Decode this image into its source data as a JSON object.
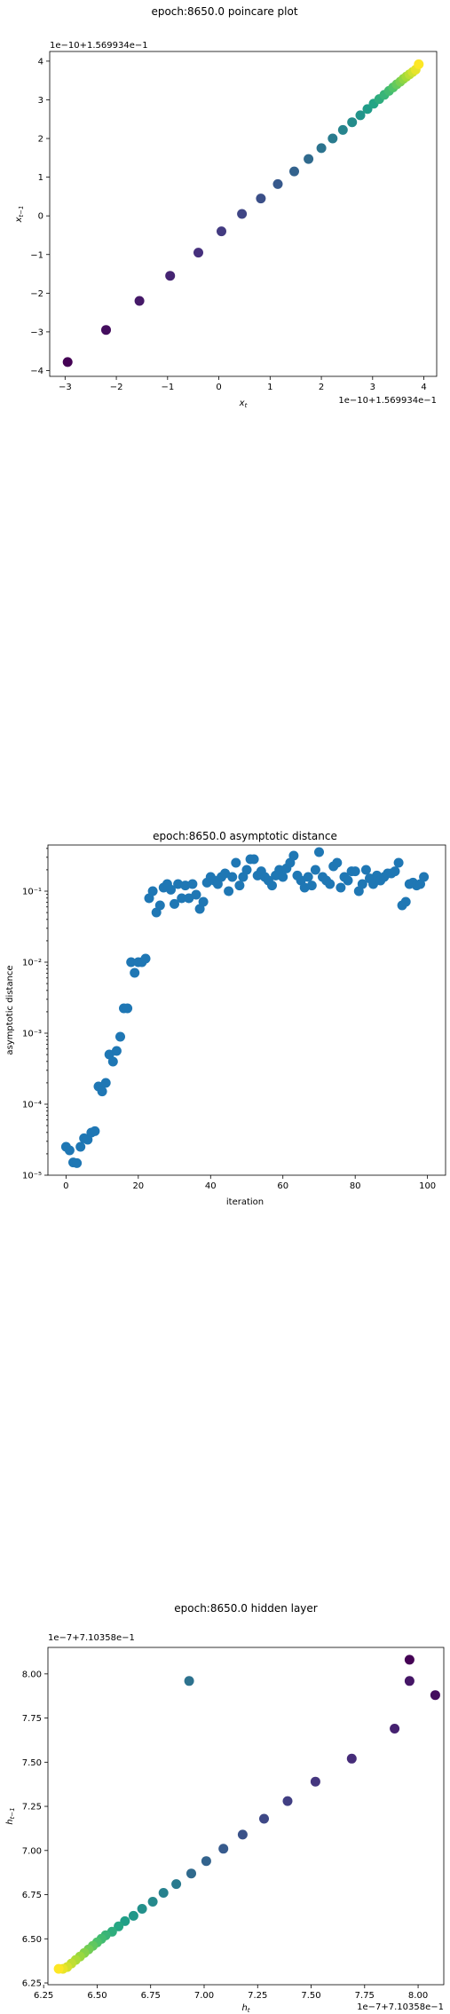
{
  "chart_data": [
    {
      "type": "scatter",
      "title": "epoch:8650.0 poincare plot",
      "xlabel": "x_t",
      "ylabel": "x_{t-1}",
      "x_offset_label": "1e−10+1.569934e−1",
      "y_offset_label": "1e−10+1.569934e−1",
      "xlim": [
        -3.3,
        4.25
      ],
      "ylim": [
        -4.15,
        4.25
      ],
      "xticks": [
        -3,
        -2,
        -1,
        0,
        1,
        2,
        3,
        4
      ],
      "xtick_labels": [
        "−3",
        "−2",
        "−1",
        "0",
        "1",
        "2",
        "3",
        "4"
      ],
      "yticks": [
        -4,
        -3,
        -2,
        -1,
        0,
        1,
        2,
        3,
        4
      ],
      "ytick_labels": [
        "−4",
        "−3",
        "−2",
        "−1",
        "0",
        "1",
        "2",
        "3",
        "4"
      ],
      "colormap": [
        "#440154",
        "#46327e",
        "#365c8d",
        "#277f8e",
        "#1fa187",
        "#4ac16d",
        "#a0da39",
        "#fde725"
      ],
      "points": {
        "x": [
          -2.95,
          -2.2,
          -1.55,
          -0.95,
          -0.4,
          0.05,
          0.45,
          0.82,
          1.15,
          1.47,
          1.75,
          2.0,
          2.22,
          2.42,
          2.6,
          2.76,
          2.9,
          3.02,
          3.13,
          3.23,
          3.32,
          3.4,
          3.47,
          3.54,
          3.6,
          3.66,
          3.72,
          3.78,
          3.84,
          3.9
        ],
        "y": [
          -3.78,
          -2.95,
          -2.2,
          -1.55,
          -0.95,
          -0.4,
          0.05,
          0.45,
          0.82,
          1.15,
          1.47,
          1.75,
          2.0,
          2.22,
          2.42,
          2.6,
          2.76,
          2.9,
          3.02,
          3.13,
          3.23,
          3.32,
          3.4,
          3.47,
          3.54,
          3.6,
          3.66,
          3.72,
          3.78,
          3.92
        ]
      }
    },
    {
      "type": "scatter",
      "title": "epoch:8650.0 asymptotic distance",
      "xlabel": "iteration",
      "ylabel": "asymptotic distance",
      "yscale": "log",
      "xlim": [
        -5,
        105
      ],
      "ylim_log10": [
        -5,
        -0.35
      ],
      "xticks": [
        0,
        20,
        40,
        60,
        80,
        100
      ],
      "xtick_labels": [
        "0",
        "20",
        "40",
        "60",
        "80",
        "100"
      ],
      "yticks_log10": [
        -5,
        -4,
        -3,
        -2,
        -1
      ],
      "ytick_labels": [
        "10⁻⁵",
        "10⁻⁴",
        "10⁻³",
        "10⁻²",
        "10⁻¹"
      ],
      "color": "#1f77b4",
      "points": {
        "x": [
          0,
          1,
          2,
          3,
          4,
          5,
          6,
          7,
          8,
          9,
          10,
          11,
          12,
          13,
          14,
          15,
          16,
          17,
          18,
          19,
          20,
          21,
          22,
          23,
          24,
          25,
          26,
          27,
          28,
          29,
          30,
          31,
          32,
          33,
          34,
          35,
          36,
          37,
          38,
          39,
          40,
          41,
          42,
          43,
          44,
          45,
          46,
          47,
          48,
          49,
          50,
          51,
          52,
          53,
          54,
          55,
          56,
          57,
          58,
          59,
          60,
          61,
          62,
          63,
          64,
          65,
          66,
          67,
          68,
          69,
          70,
          71,
          72,
          73,
          74,
          75,
          76,
          77,
          78,
          79,
          80,
          81,
          82,
          83,
          84,
          85,
          86,
          87,
          88,
          89,
          90,
          91,
          92,
          93,
          94,
          95,
          96,
          97,
          98,
          99
        ],
        "y_log10": [
          -4.6,
          -4.65,
          -4.82,
          -4.83,
          -4.6,
          -4.48,
          -4.5,
          -4.4,
          -4.38,
          -3.75,
          -3.82,
          -3.7,
          -3.3,
          -3.4,
          -3.25,
          -3.05,
          -2.65,
          -2.65,
          -2.0,
          -2.15,
          -2.0,
          -2.0,
          -1.95,
          -1.1,
          -1.0,
          -1.3,
          -1.2,
          -0.95,
          -0.9,
          -0.98,
          -1.18,
          -0.9,
          -1.1,
          -0.92,
          -1.1,
          -0.9,
          -1.05,
          -1.25,
          -1.15,
          -0.88,
          -0.8,
          -0.85,
          -0.9,
          -0.8,
          -0.75,
          -1.0,
          -0.8,
          -0.6,
          -0.92,
          -0.8,
          -0.7,
          -0.55,
          -0.55,
          -0.78,
          -0.72,
          -0.8,
          -0.85,
          -0.92,
          -0.78,
          -0.7,
          -0.8,
          -0.68,
          -0.6,
          -0.5,
          -0.78,
          -0.85,
          -0.95,
          -0.8,
          -0.92,
          -0.7,
          -0.45,
          -0.8,
          -0.85,
          -0.9,
          -0.65,
          -0.6,
          -0.95,
          -0.8,
          -0.85,
          -0.72,
          -0.72,
          -1.0,
          -0.9,
          -0.7,
          -0.82,
          -0.9,
          -0.78,
          -0.85,
          -0.8,
          -0.75,
          -0.75,
          -0.72,
          -0.6,
          -1.2,
          -1.15,
          -0.9,
          -0.88,
          -0.92,
          -0.9,
          -0.8
        ]
      }
    },
    {
      "type": "scatter",
      "title": "epoch:8650.0 hidden layer",
      "xlabel": "h_t",
      "ylabel": "h_{t-1}",
      "x_offset_label": "1e−7+7.10358e−1",
      "y_offset_label": "1e−7+7.10358e−1",
      "xlim": [
        6.27,
        8.12
      ],
      "ylim": [
        6.24,
        8.15
      ],
      "xticks": [
        6.25,
        6.5,
        6.75,
        7.0,
        7.25,
        7.5,
        7.75,
        8.0
      ],
      "xtick_labels": [
        "6.25",
        "6.50",
        "6.75",
        "7.00",
        "7.25",
        "7.50",
        "7.75",
        "8.00"
      ],
      "yticks": [
        6.25,
        6.5,
        6.75,
        7.0,
        7.25,
        7.5,
        7.75,
        8.0
      ],
      "ytick_labels": [
        "6.25",
        "6.50",
        "6.75",
        "7.00",
        "7.25",
        "7.50",
        "7.75",
        "8.00"
      ],
      "colormap": [
        "#440154",
        "#46327e",
        "#365c8d",
        "#277f8e",
        "#1fa187",
        "#4ac16d",
        "#a0da39",
        "#fde725"
      ],
      "points": {
        "x": [
          7.96,
          8.08,
          7.96,
          7.89,
          7.69,
          7.52,
          7.39,
          7.28,
          7.18,
          7.09,
          7.01,
          6.94,
          6.93,
          6.87,
          6.81,
          6.76,
          6.71,
          6.67,
          6.63,
          6.6,
          6.57,
          6.54,
          6.52,
          6.5,
          6.48,
          6.46,
          6.44,
          6.42,
          6.4,
          6.38,
          6.36,
          6.34,
          6.32
        ],
        "y": [
          8.08,
          7.88,
          7.96,
          7.69,
          7.52,
          7.39,
          7.28,
          7.18,
          7.09,
          7.01,
          6.94,
          6.87,
          7.96,
          6.81,
          6.76,
          6.71,
          6.67,
          6.63,
          6.6,
          6.57,
          6.54,
          6.52,
          6.5,
          6.48,
          6.46,
          6.44,
          6.42,
          6.4,
          6.38,
          6.36,
          6.34,
          6.33,
          6.33
        ]
      }
    }
  ]
}
